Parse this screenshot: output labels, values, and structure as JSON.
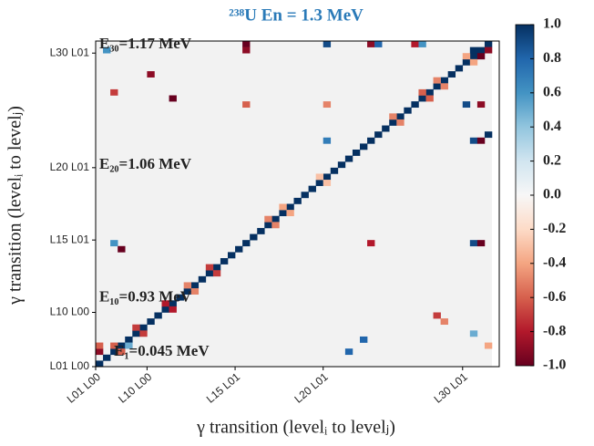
{
  "chart_data": {
    "type": "heatmap",
    "title": "²³⁸U En = 1.3 MeV",
    "xlabel": "γ transition (levelᵢ to levelⱼ)",
    "ylabel": "γ transition (levelᵢ to levelⱼ)",
    "colormap": "RdBu",
    "xlim": [
      0,
      54
    ],
    "ylim": [
      0,
      54
    ],
    "xticks": [
      {
        "value": 0,
        "label": "L01 L00"
      },
      {
        "value": 7,
        "label": "L10 L00"
      },
      {
        "value": 19,
        "label": "L15 L01"
      },
      {
        "value": 31,
        "label": "L20 L01"
      },
      {
        "value": 50,
        "label": "L30 L01"
      }
    ],
    "yticks": [
      {
        "value": 0,
        "label": "L01 L00"
      },
      {
        "value": 9,
        "label": "L10 L00"
      },
      {
        "value": 21,
        "label": "L15 L01"
      },
      {
        "value": 33,
        "label": "L20 L01"
      },
      {
        "value": 52,
        "label": "L30 L01"
      }
    ],
    "clim": [
      -1,
      1
    ],
    "cticks": [
      {
        "value": 1,
        "label": "1.0"
      },
      0.8,
      0.6,
      0.4,
      0.2,
      {
        "value": 0,
        "label": "0.0"
      },
      -0.2,
      -0.4,
      -0.6,
      -0.8,
      {
        "value": -1,
        "label": "-1.0"
      }
    ],
    "annotations": [
      {
        "text": "E₃₀=1.17 MeV",
        "x": 0,
        "y": 54
      },
      {
        "text": "E₂₀=1.06 MeV",
        "x": 0,
        "y": 34
      },
      {
        "text": "E₁₀=0.93 MeV",
        "x": 0,
        "y": 12
      },
      {
        "text": "E₁=0.045 MeV",
        "x": 2,
        "y": 3
      }
    ],
    "diagonal": 1,
    "cells": [
      [
        3,
        2,
        -0.6
      ],
      [
        2,
        3,
        -0.6
      ],
      [
        6,
        5,
        -0.7
      ],
      [
        5,
        6,
        -0.7
      ],
      [
        10,
        9,
        -0.8
      ],
      [
        9,
        10,
        -0.8
      ],
      [
        12,
        13,
        -0.5
      ],
      [
        13,
        12,
        -0.5
      ],
      [
        15,
        16,
        -0.7
      ],
      [
        16,
        15,
        -0.7
      ],
      [
        23,
        24,
        -0.5
      ],
      [
        24,
        23,
        -0.5
      ],
      [
        25,
        26,
        -0.4
      ],
      [
        26,
        25,
        -0.4
      ],
      [
        30,
        31,
        -0.3
      ],
      [
        31,
        30,
        -0.3
      ],
      [
        40,
        41,
        -0.5
      ],
      [
        41,
        40,
        -0.5
      ],
      [
        44,
        45,
        -0.6
      ],
      [
        45,
        44,
        -0.6
      ],
      [
        46,
        47,
        -0.5
      ],
      [
        47,
        46,
        -0.5
      ],
      [
        50,
        51,
        -0.4
      ],
      [
        51,
        50,
        -0.4
      ],
      [
        51,
        52,
        1
      ],
      [
        52,
        51,
        -1
      ],
      [
        53,
        52,
        -0.9
      ],
      [
        50,
        43,
        0.9
      ],
      [
        52,
        43,
        -0.9
      ],
      [
        51,
        37,
        0.9
      ],
      [
        52,
        37,
        -1
      ],
      [
        53,
        38,
        1
      ],
      [
        51,
        20,
        0.9
      ],
      [
        52,
        20,
        -1
      ],
      [
        20,
        53,
        -1
      ],
      [
        31,
        53,
        0.9
      ],
      [
        37,
        53,
        -0.9
      ],
      [
        38,
        53,
        0.8
      ],
      [
        43,
        53,
        -0.8
      ],
      [
        44,
        53,
        0.6
      ],
      [
        20,
        52,
        -0.9
      ],
      [
        20,
        43,
        -0.6
      ],
      [
        31,
        37,
        0.7
      ],
      [
        31,
        43,
        -0.5
      ],
      [
        37,
        20,
        -0.8
      ],
      [
        0,
        2,
        -0.9
      ],
      [
        0,
        3,
        -0.6
      ],
      [
        2,
        20,
        0.6
      ],
      [
        2,
        45,
        -0.7
      ],
      [
        1,
        52,
        0.6
      ],
      [
        7,
        48,
        -0.9
      ],
      [
        10,
        44,
        -1
      ],
      [
        3,
        19,
        -1
      ],
      [
        4,
        3,
        0.5
      ],
      [
        36,
        4,
        0.8
      ],
      [
        34,
        2,
        0.8
      ],
      [
        46,
        8,
        -0.7
      ],
      [
        47,
        7,
        -0.5
      ],
      [
        51,
        5,
        0.5
      ],
      [
        53,
        3,
        -0.4
      ]
    ]
  }
}
